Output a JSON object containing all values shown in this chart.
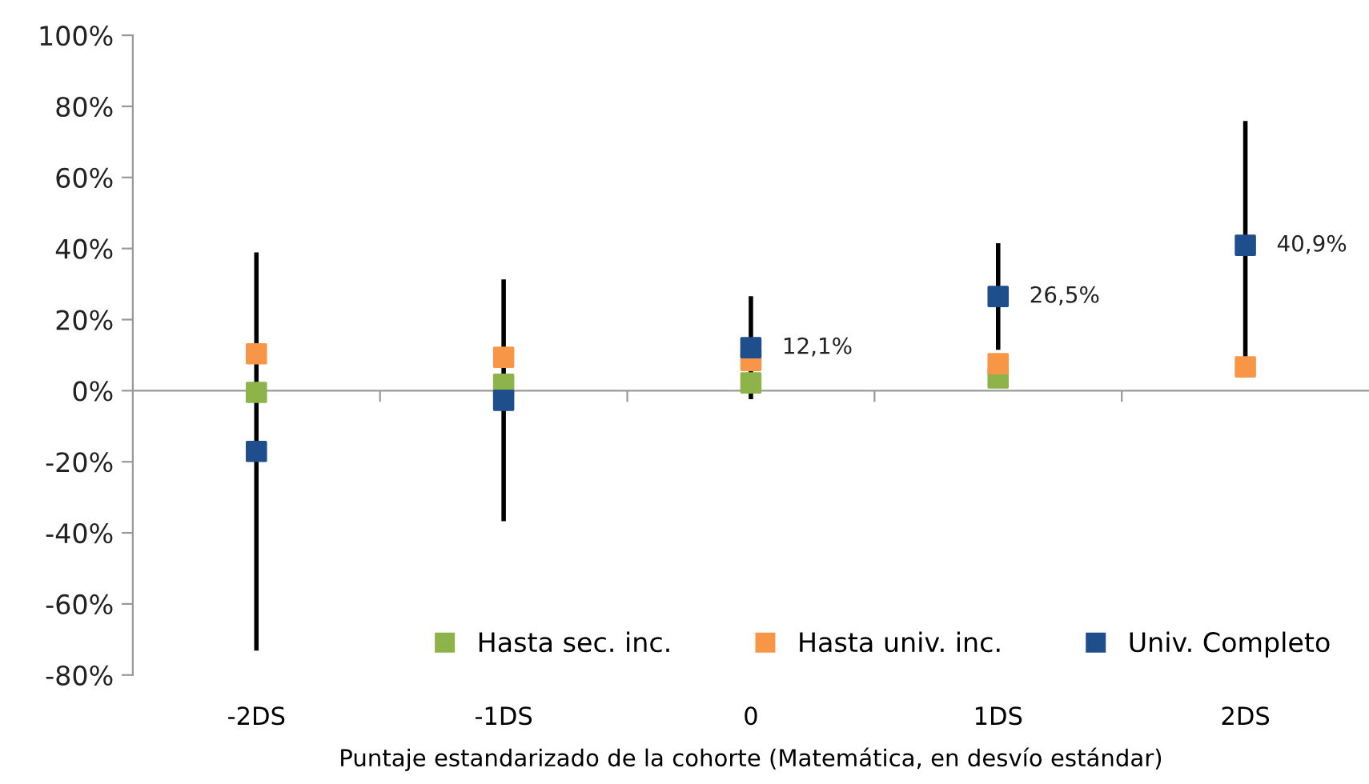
{
  "chart_data": {
    "type": "scatter",
    "xlabel": "Puntaje estandarizado de la cohorte (Matemática, en desvío estándar)",
    "categories": [
      "-2DS",
      "-1DS",
      "0",
      "1DS",
      "2DS"
    ],
    "series": [
      {
        "name": "Hasta sec. inc.",
        "color": "#8db34a",
        "values": [
          -0.5,
          1.8,
          2.2,
          3.6,
          null
        ]
      },
      {
        "name": "Hasta univ. inc.",
        "color": "#f79646",
        "values": [
          10.4,
          9.4,
          8.5,
          7.6,
          6.7
        ]
      },
      {
        "name": "Univ. Completo",
        "color": "#1f4e8c",
        "values": [
          -17.1,
          -2.7,
          12.1,
          26.5,
          40.9
        ],
        "errors": [
          56,
          34,
          14.5,
          15,
          35
        ],
        "value_labels": [
          null,
          null,
          "12,1%",
          "26,5%",
          "40,9%"
        ]
      }
    ],
    "ylim": [
      -80,
      100
    ],
    "yticks": [
      {
        "value": -80,
        "label": "-80%"
      },
      {
        "value": -60,
        "label": "-60%"
      },
      {
        "value": -40,
        "label": "-40%"
      },
      {
        "value": -20,
        "label": "-20%"
      },
      {
        "value": 0,
        "label": "0%"
      },
      {
        "value": 20,
        "label": "20%"
      },
      {
        "value": 40,
        "label": "40%"
      },
      {
        "value": 60,
        "label": "60%"
      },
      {
        "value": 80,
        "label": "80%"
      },
      {
        "value": 100,
        "label": "100%"
      }
    ],
    "marker": "square",
    "legend": "bottom"
  }
}
